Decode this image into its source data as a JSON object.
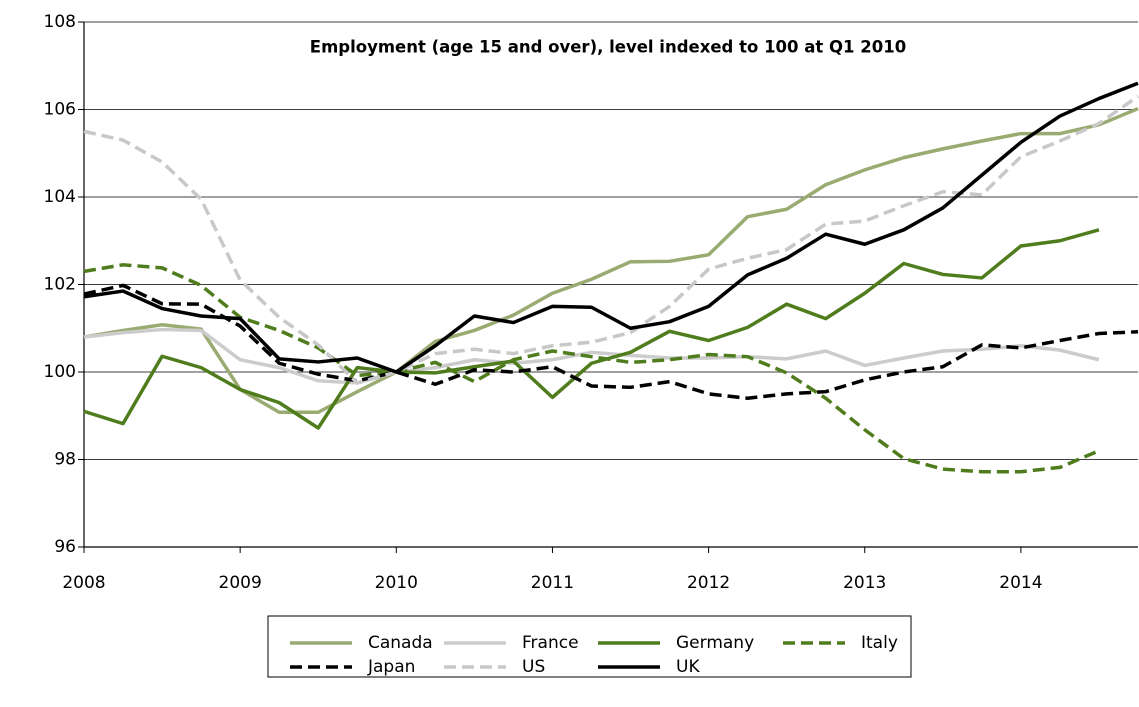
{
  "chart_data": {
    "type": "line",
    "title": "Employment (age 15 and over), level indexed to 100 at Q1 2010",
    "x": [
      2008,
      2008.25,
      2008.5,
      2008.75,
      2009,
      2009.25,
      2009.5,
      2009.75,
      2010,
      2010.25,
      2010.5,
      2010.75,
      2011,
      2011.25,
      2011.5,
      2011.75,
      2012,
      2012.25,
      2012.5,
      2012.75,
      2013,
      2013.25,
      2013.5,
      2013.75,
      2014,
      2014.25,
      2014.5,
      2014.75
    ],
    "xlim": [
      2008,
      2014.75
    ],
    "xticks": [
      2008,
      2009,
      2010,
      2011,
      2012,
      2013,
      2014
    ],
    "ylim": [
      96,
      108
    ],
    "yticks": [
      96,
      98,
      100,
      102,
      104,
      106,
      108
    ],
    "grid": true,
    "legend": "bottom",
    "series": [
      {
        "name": "Canada",
        "color": "#9aab72",
        "style": "solid",
        "values": [
          100.8,
          100.95,
          101.08,
          100.98,
          99.6,
          99.08,
          99.08,
          99.55,
          100.0,
          100.7,
          100.95,
          101.3,
          101.8,
          102.12,
          102.52,
          102.53,
          102.68,
          103.55,
          103.72,
          104.28,
          104.62,
          104.9,
          105.1,
          105.28,
          105.45,
          105.45,
          105.65,
          106.02
        ]
      },
      {
        "name": "France",
        "color": "#cccccc",
        "style": "solid",
        "values": [
          100.8,
          100.9,
          100.97,
          100.95,
          100.28,
          100.1,
          99.8,
          99.75,
          100.0,
          100.1,
          100.28,
          100.2,
          100.28,
          100.45,
          100.38,
          100.32,
          100.32,
          100.35,
          100.3,
          100.48,
          100.15,
          100.32,
          100.48,
          100.52,
          100.6,
          100.5,
          100.28,
          null
        ]
      },
      {
        "name": "Germany",
        "color": "#4f7c1c",
        "style": "solid",
        "values": [
          99.1,
          98.82,
          100.36,
          100.1,
          99.6,
          99.3,
          98.72,
          100.1,
          100.0,
          99.98,
          100.12,
          100.25,
          99.42,
          100.2,
          100.45,
          100.93,
          100.72,
          101.02,
          101.55,
          101.22,
          101.8,
          102.48,
          102.23,
          102.15,
          102.88,
          103.0,
          103.25,
          null
        ]
      },
      {
        "name": "Italy",
        "color": "#4f7c1c",
        "style": "dashed",
        "values": [
          102.3,
          102.45,
          102.38,
          101.98,
          101.25,
          100.95,
          100.55,
          99.92,
          100.0,
          100.22,
          99.78,
          100.28,
          100.48,
          100.35,
          100.22,
          100.28,
          100.4,
          100.35,
          99.98,
          99.4,
          98.68,
          98.02,
          97.78,
          97.72,
          97.72,
          97.82,
          98.2,
          null
        ]
      },
      {
        "name": "Japan",
        "color": "#000000",
        "style": "dashed",
        "values": [
          101.78,
          101.98,
          101.56,
          101.55,
          101.05,
          100.2,
          99.95,
          99.8,
          100.0,
          99.72,
          100.05,
          100.0,
          100.12,
          99.68,
          99.65,
          99.78,
          99.5,
          99.4,
          99.5,
          99.55,
          99.82,
          100.0,
          100.12,
          100.62,
          100.55,
          100.72,
          100.88,
          100.92
        ]
      },
      {
        "name": "US",
        "color": "#c8c8c8",
        "style": "dashed",
        "values": [
          105.5,
          105.3,
          104.8,
          103.95,
          102.1,
          101.25,
          100.62,
          99.75,
          100.0,
          100.42,
          100.52,
          100.42,
          100.6,
          100.68,
          100.9,
          101.5,
          102.35,
          102.6,
          102.8,
          103.38,
          103.45,
          103.8,
          104.12,
          104.05,
          104.92,
          105.28,
          105.68,
          106.3
        ]
      },
      {
        "name": "UK",
        "color": "#000000",
        "style": "solid",
        "values": [
          101.72,
          101.85,
          101.45,
          101.28,
          101.22,
          100.3,
          100.23,
          100.32,
          100.0,
          100.6,
          101.28,
          101.13,
          101.5,
          101.48,
          101.0,
          101.15,
          101.5,
          102.22,
          102.6,
          103.15,
          102.92,
          103.25,
          103.75,
          104.5,
          105.25,
          105.85,
          106.25,
          106.6
        ]
      }
    ]
  }
}
